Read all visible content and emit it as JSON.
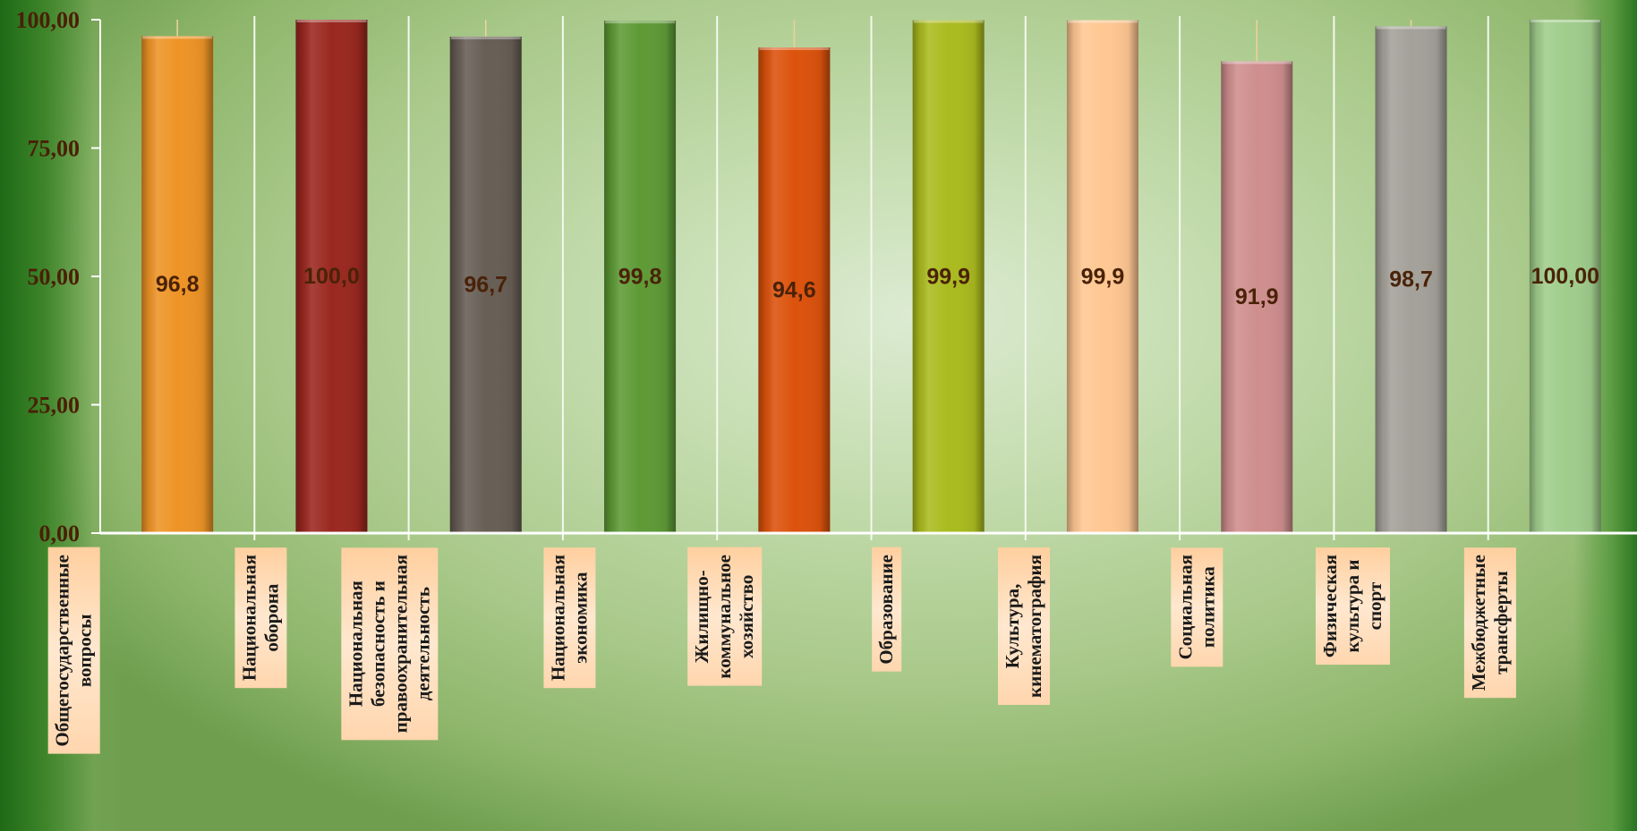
{
  "chart_data": {
    "type": "bar",
    "categories": [
      "Общегосударственные\nвопросы",
      "Национальная оборона",
      "Национальная\nбезопасность и\nправоохранительная\nдеятельность",
      "Национальная экономика",
      "Жилищно-коммунальное\nхозяйство",
      "Образование",
      "Культура,\nкинематография",
      "Социальная политика",
      "Физическая культура и\nспорт",
      "Межбюджетные\nтрансферты"
    ],
    "values": [
      96.8,
      100.0,
      96.7,
      99.8,
      94.6,
      99.9,
      99.9,
      91.9,
      98.7,
      100.0
    ],
    "data_labels": [
      "96,8",
      "100,0",
      "96,7",
      "99,8",
      "94,6",
      "99,9",
      "99,9",
      "91,9",
      "98,7",
      "100,00"
    ],
    "colors": [
      "#ee9426",
      "#9a2820",
      "#675e55",
      "#5e9a36",
      "#dc520c",
      "#aabb1e",
      "#ffc792",
      "#cf8e8e",
      "#a4a19a",
      "#a0cd8c"
    ],
    "ylim": [
      0,
      100
    ],
    "yticks": [
      "0,00",
      "25,00",
      "50,00",
      "75,00",
      "100,00"
    ],
    "ytick_values": [
      0,
      25,
      50,
      75,
      100
    ],
    "grid": "vertical",
    "title": "",
    "xlabel": "",
    "ylabel": ""
  }
}
